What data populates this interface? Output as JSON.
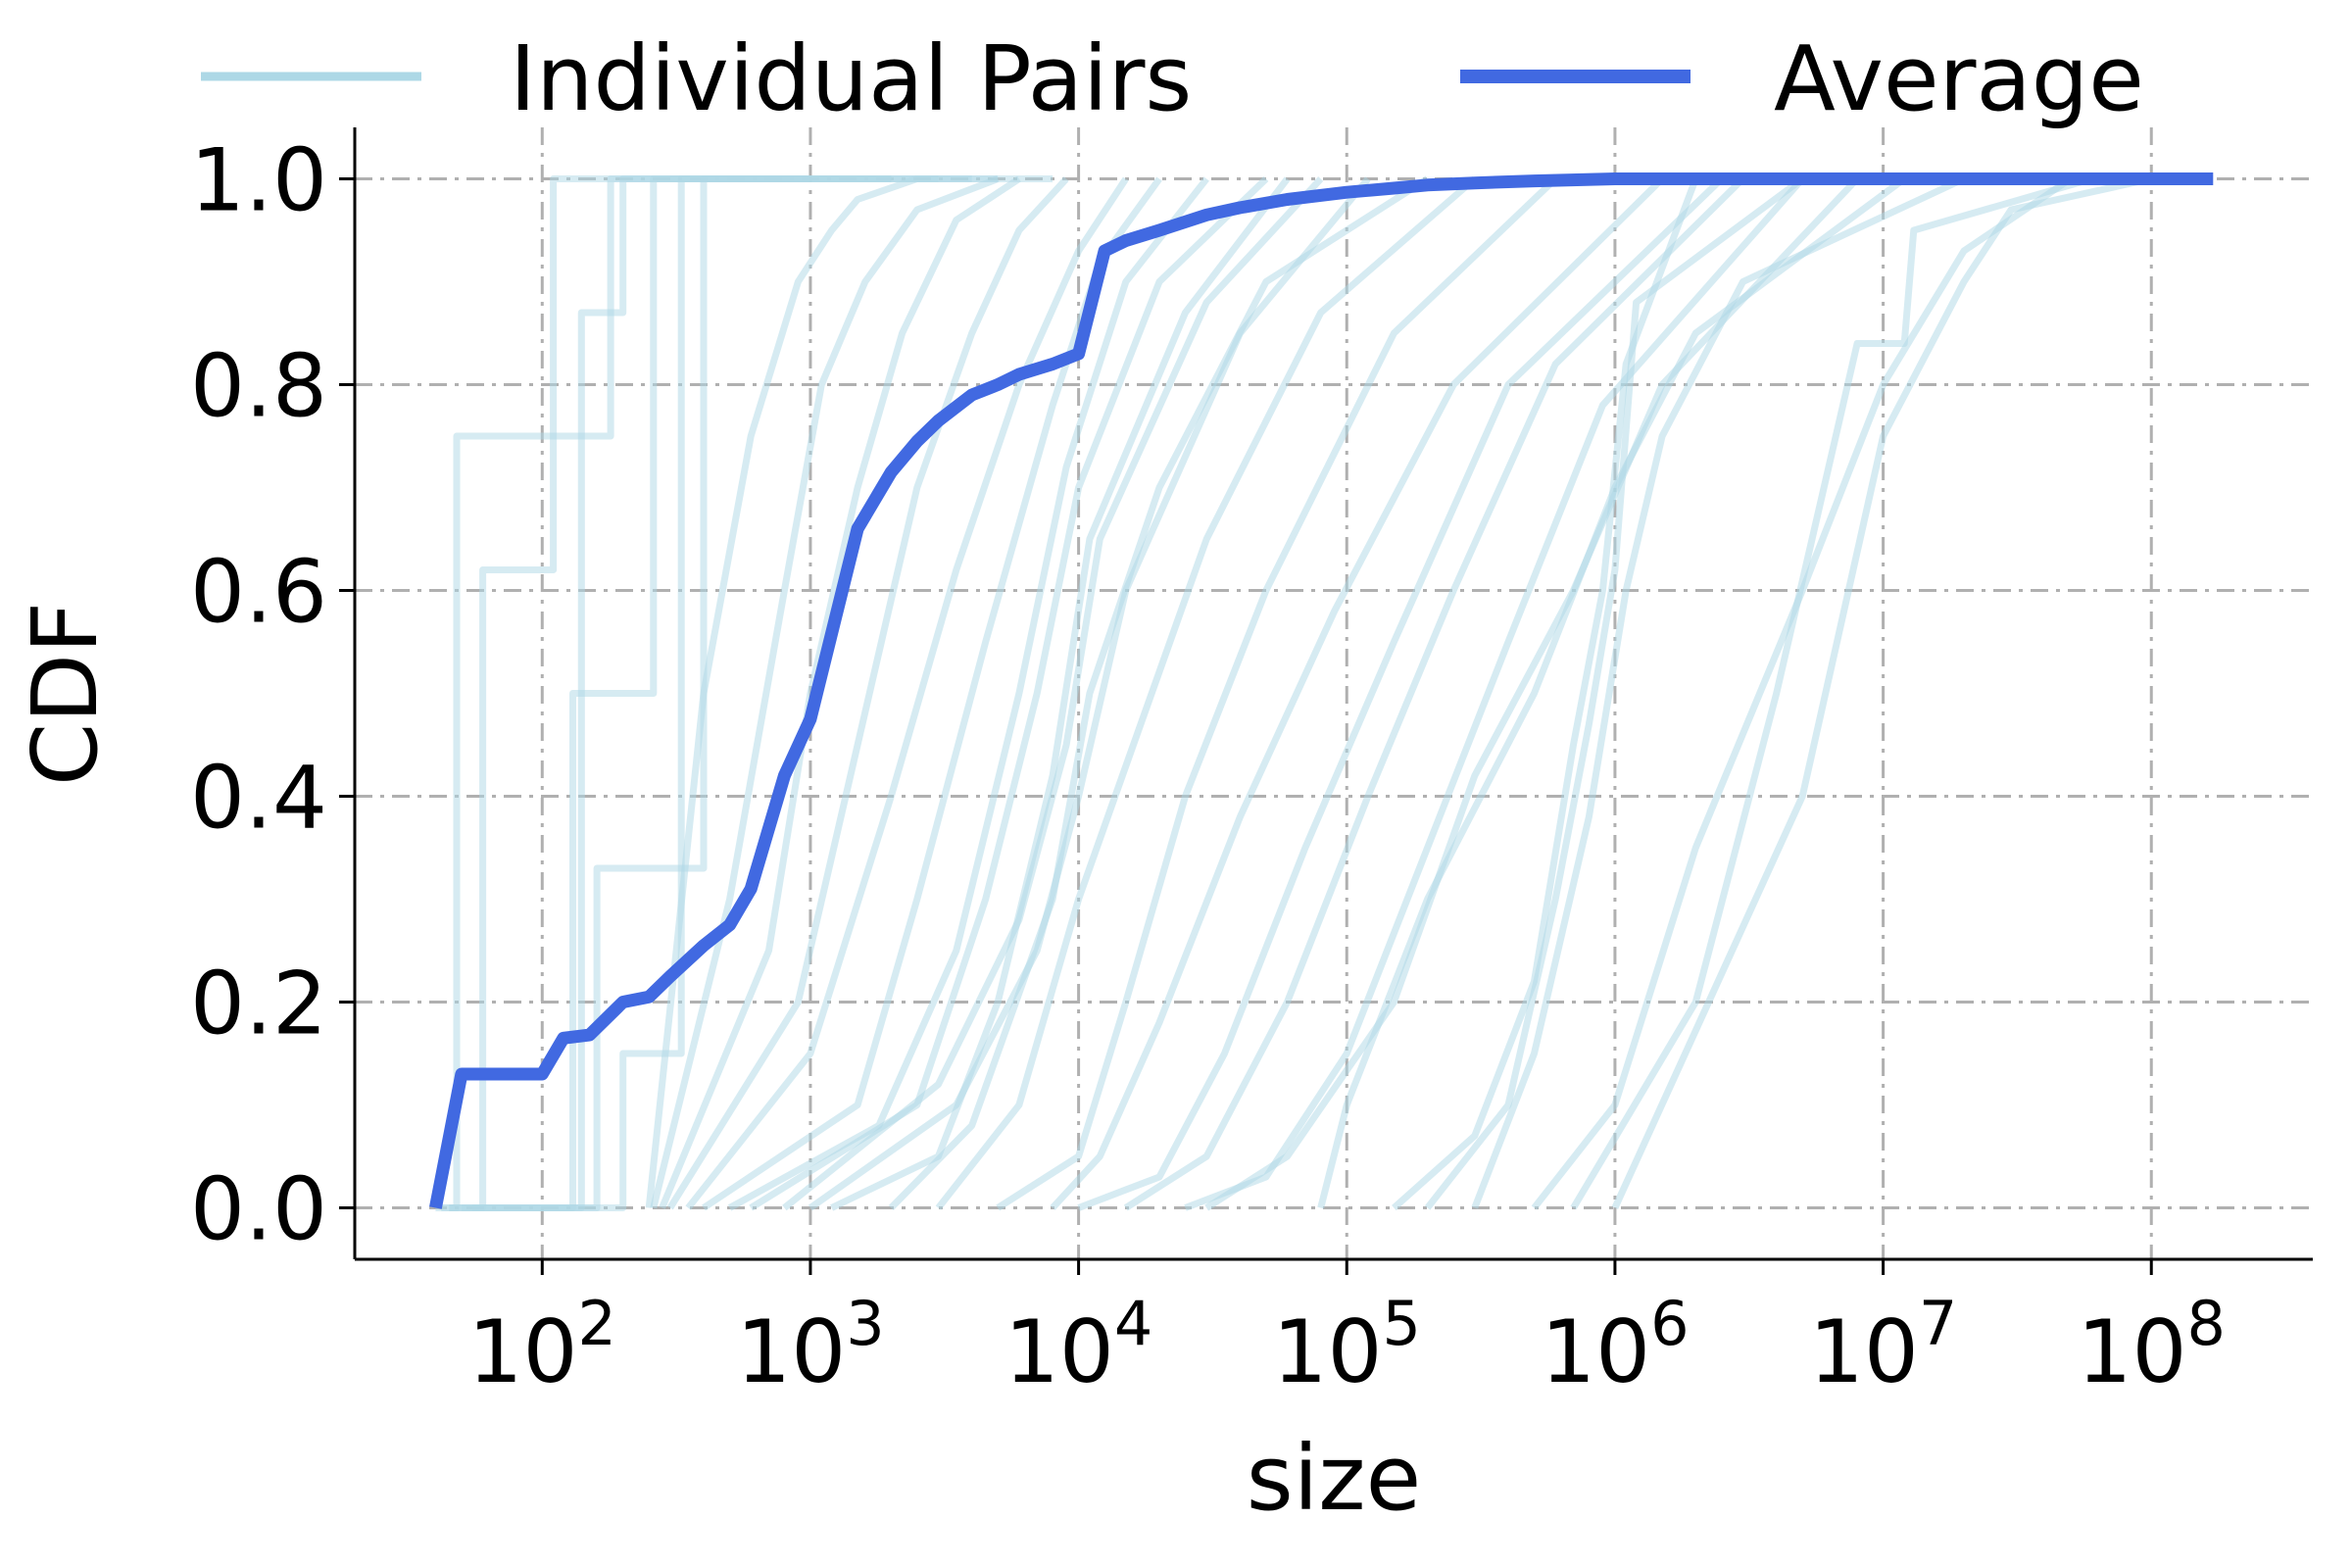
{
  "chart_data": {
    "type": "line",
    "xlabel": "size",
    "ylabel": "CDF",
    "xscale": "log",
    "xlim": [
      20,
      400000000
    ],
    "ylim": [
      -0.05,
      1.05
    ],
    "grid": true,
    "legend_placement": "top",
    "x_ticks": [
      {
        "base": "10",
        "exp": "2",
        "value": 100
      },
      {
        "base": "10",
        "exp": "3",
        "value": 1000
      },
      {
        "base": "10",
        "exp": "4",
        "value": 10000
      },
      {
        "base": "10",
        "exp": "5",
        "value": 100000
      },
      {
        "base": "10",
        "exp": "6",
        "value": 1000000
      },
      {
        "base": "10",
        "exp": "7",
        "value": 10000000
      },
      {
        "base": "10",
        "exp": "8",
        "value": 100000000
      }
    ],
    "y_ticks": [
      {
        "label": "0.0",
        "value": 0.0
      },
      {
        "label": "0.2",
        "value": 0.2
      },
      {
        "label": "0.4",
        "value": 0.4
      },
      {
        "label": "0.6",
        "value": 0.6
      },
      {
        "label": "0.8",
        "value": 0.8
      },
      {
        "label": "1.0",
        "value": 1.0
      }
    ],
    "series": [
      {
        "name": "Individual Pairs",
        "color": "#add8e6",
        "lines": [
          {
            "x": [
              40,
              48,
              48,
              180,
              180,
              1000
            ],
            "y": [
              0,
              0,
              0.75,
              0.75,
              1,
              1
            ]
          },
          {
            "x": [
              42,
              60,
              60,
              110,
              110,
              2000
            ],
            "y": [
              0,
              0,
              0.62,
              0.62,
              1,
              1
            ]
          },
          {
            "x": [
              45,
              140,
              140,
              200,
              200,
              3000
            ],
            "y": [
              0,
              0,
              0.87,
              0.87,
              1,
              1
            ]
          },
          {
            "x": [
              45,
              130,
              130,
              260,
              260,
              5000
            ],
            "y": [
              0,
              0,
              0.5,
              0.5,
              1,
              1
            ]
          },
          {
            "x": [
              50,
              160,
              160,
              400,
              400,
              8000
            ],
            "y": [
              0,
              0,
              0.33,
              0.33,
              1,
              1
            ]
          },
          {
            "x": [
              55,
              200,
              200,
              330,
              330,
              2000
            ],
            "y": [
              0,
              0,
              0.15,
              0.15,
              1,
              1
            ]
          },
          {
            "x": [
              250,
              400,
              600,
              900,
              1200,
              1500,
              2500,
              4000
            ],
            "y": [
              0,
              0.5,
              0.75,
              0.9,
              0.95,
              0.98,
              1,
              1
            ]
          },
          {
            "x": [
              260,
              500,
              800,
              1100,
              1600,
              2500,
              5000
            ],
            "y": [
              0,
              0.3,
              0.6,
              0.8,
              0.9,
              0.97,
              1
            ]
          },
          {
            "x": [
              280,
              700,
              1000,
              1500,
              2200,
              3500,
              6000
            ],
            "y": [
              0,
              0.25,
              0.5,
              0.7,
              0.85,
              0.96,
              1
            ]
          },
          {
            "x": [
              300,
              900,
              1500,
              2500,
              4000,
              6000,
              9000
            ],
            "y": [
              0,
              0.2,
              0.45,
              0.7,
              0.85,
              0.95,
              1
            ]
          },
          {
            "x": [
              350,
              1000,
              2000,
              3500,
              6000,
              10000,
              15000
            ],
            "y": [
              0,
              0.15,
              0.4,
              0.62,
              0.8,
              0.93,
              1
            ]
          },
          {
            "x": [
              400,
              1500,
              2500,
              4500,
              8000,
              12000,
              20000
            ],
            "y": [
              0,
              0.1,
              0.3,
              0.55,
              0.78,
              0.92,
              1
            ]
          },
          {
            "x": [
              500,
              1800,
              3500,
              6000,
              9000,
              15000,
              30000
            ],
            "y": [
              0,
              0.08,
              0.25,
              0.5,
              0.72,
              0.9,
              1
            ]
          },
          {
            "x": [
              600,
              2500,
              4500,
              7000,
              10000,
              20000,
              50000
            ],
            "y": [
              0,
              0.1,
              0.3,
              0.5,
              0.7,
              0.9,
              1
            ]
          },
          {
            "x": [
              800,
              3000,
              6000,
              9000,
              12000,
              30000,
              80000
            ],
            "y": [
              0,
              0.12,
              0.28,
              0.45,
              0.65,
              0.88,
              1
            ]
          },
          {
            "x": [
              1000,
              3500,
              7000,
              10000,
              15000,
              40000,
              120000
            ],
            "y": [
              0,
              0.1,
              0.25,
              0.4,
              0.6,
              0.85,
              1
            ]
          },
          {
            "x": [
              1200,
              3000,
              5000,
              8000,
              11000,
              25000,
              60000
            ],
            "y": [
              0,
              0.05,
              0.2,
              0.42,
              0.65,
              0.87,
              1
            ]
          },
          {
            "x": [
              2000,
              4000,
              8000,
              11000,
              20000,
              50000,
              200000
            ],
            "y": [
              0,
              0.08,
              0.3,
              0.5,
              0.7,
              0.9,
              1
            ]
          },
          {
            "x": [
              3000,
              6000,
              10000,
              16000,
              30000,
              80000,
              300000
            ],
            "y": [
              0,
              0.1,
              0.3,
              0.45,
              0.65,
              0.87,
              1
            ]
          },
          {
            "x": [
              5000,
              10000,
              15000,
              25000,
              50000,
              150000,
              600000
            ],
            "y": [
              0,
              0.05,
              0.2,
              0.4,
              0.6,
              0.85,
              1
            ]
          },
          {
            "x": [
              8000,
              12000,
              20000,
              40000,
              90000,
              250000,
              1500000
            ],
            "y": [
              0,
              0.05,
              0.18,
              0.38,
              0.58,
              0.8,
              1
            ]
          },
          {
            "x": [
              10000,
              20000,
              35000,
              70000,
              150000,
              400000,
              2500000
            ],
            "y": [
              0,
              0.03,
              0.15,
              0.35,
              0.55,
              0.8,
              1
            ]
          },
          {
            "x": [
              15000,
              30000,
              60000,
              120000,
              250000,
              600000,
              3000000
            ],
            "y": [
              0,
              0.05,
              0.2,
              0.4,
              0.6,
              0.82,
              1
            ]
          },
          {
            "x": [
              25000,
              50000,
              100000,
              200000,
              400000,
              900000,
              5000000
            ],
            "y": [
              0,
              0.03,
              0.15,
              0.35,
              0.55,
              0.78,
              1
            ]
          },
          {
            "x": [
              30000,
              60000,
              150000,
              300000,
              700000,
              1500000,
              8000000
            ],
            "y": [
              0,
              0.05,
              0.2,
              0.42,
              0.6,
              0.8,
              1
            ]
          },
          {
            "x": [
              80000,
              100000,
              200000,
              500000,
              1000000,
              2000000,
              12000000
            ],
            "y": [
              0,
              0.1,
              0.3,
              0.5,
              0.7,
              0.85,
              1
            ]
          },
          {
            "x": [
              150000,
              300000,
              500000,
              700000,
              900000,
              1100000,
              2000000
            ],
            "y": [
              0,
              0.07,
              0.22,
              0.45,
              0.6,
              0.82,
              1
            ]
          },
          {
            "x": [
              200000,
              400000,
              600000,
              800000,
              1000000,
              1200000,
              5000000
            ],
            "y": [
              0,
              0.1,
              0.3,
              0.47,
              0.62,
              0.88,
              1
            ]
          },
          {
            "x": [
              300000,
              500000,
              800000,
              1100000,
              1500000,
              3000000,
              20000000
            ],
            "y": [
              0,
              0.15,
              0.38,
              0.6,
              0.75,
              0.9,
              1
            ]
          },
          {
            "x": [
              500000,
              1000000,
              2000000,
              5000000,
              10000000,
              20000000,
              50000000
            ],
            "y": [
              0,
              0.1,
              0.35,
              0.6,
              0.8,
              0.93,
              1
            ]
          },
          {
            "x": [
              700000,
              2000000,
              4000000,
              8000000,
              12000000,
              13000000,
              60000000
            ],
            "y": [
              0,
              0.2,
              0.5,
              0.84,
              0.84,
              0.95,
              1
            ]
          },
          {
            "x": [
              1000000,
              5000000,
              10000000,
              20000000,
              30000000,
              100000000
            ],
            "y": [
              0,
              0.4,
              0.75,
              0.9,
              0.97,
              1
            ]
          }
        ]
      },
      {
        "name": "Average",
        "color": "#4169e1",
        "x": [
          40,
          50,
          100,
          120,
          150,
          200,
          250,
          300,
          400,
          500,
          600,
          800,
          1000,
          1500,
          2000,
          2500,
          3000,
          4000,
          5000,
          6000,
          8000,
          10000,
          12500,
          15000,
          20000,
          30000,
          40000,
          60000,
          100000,
          150000,
          200000,
          300000,
          500000,
          1000000,
          10000000,
          170000000
        ],
        "y": [
          0,
          0.13,
          0.13,
          0.165,
          0.168,
          0.2,
          0.205,
          0.225,
          0.255,
          0.275,
          0.31,
          0.42,
          0.475,
          0.66,
          0.715,
          0.745,
          0.765,
          0.79,
          0.8,
          0.81,
          0.82,
          0.83,
          0.93,
          0.94,
          0.95,
          0.965,
          0.972,
          0.98,
          0.987,
          0.991,
          0.994,
          0.996,
          0.998,
          1.0,
          1.0,
          1.0
        ]
      }
    ]
  }
}
